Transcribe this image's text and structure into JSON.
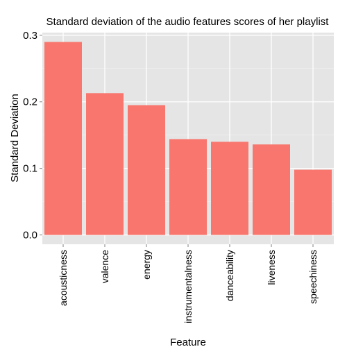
{
  "chart_data": {
    "type": "bar",
    "title": "Standard deviation of the audio features scores of her playlist",
    "xlabel": "Feature",
    "ylabel": "Standard Deviation",
    "categories": [
      "acousticness",
      "valence",
      "energy",
      "instrumentalness",
      "danceability",
      "liveness",
      "speechiness"
    ],
    "values": [
      0.29,
      0.213,
      0.195,
      0.144,
      0.14,
      0.136,
      0.098
    ],
    "ylim": [
      -0.014,
      0.304
    ],
    "yticks": [
      0.0,
      0.1,
      0.2,
      0.3
    ],
    "ytick_labels": [
      "0.0",
      "0.1",
      "0.2",
      "0.3"
    ],
    "bar_color": "#F8766D",
    "panel_background": "#E5E5E5",
    "grid": true,
    "legend": "none"
  }
}
